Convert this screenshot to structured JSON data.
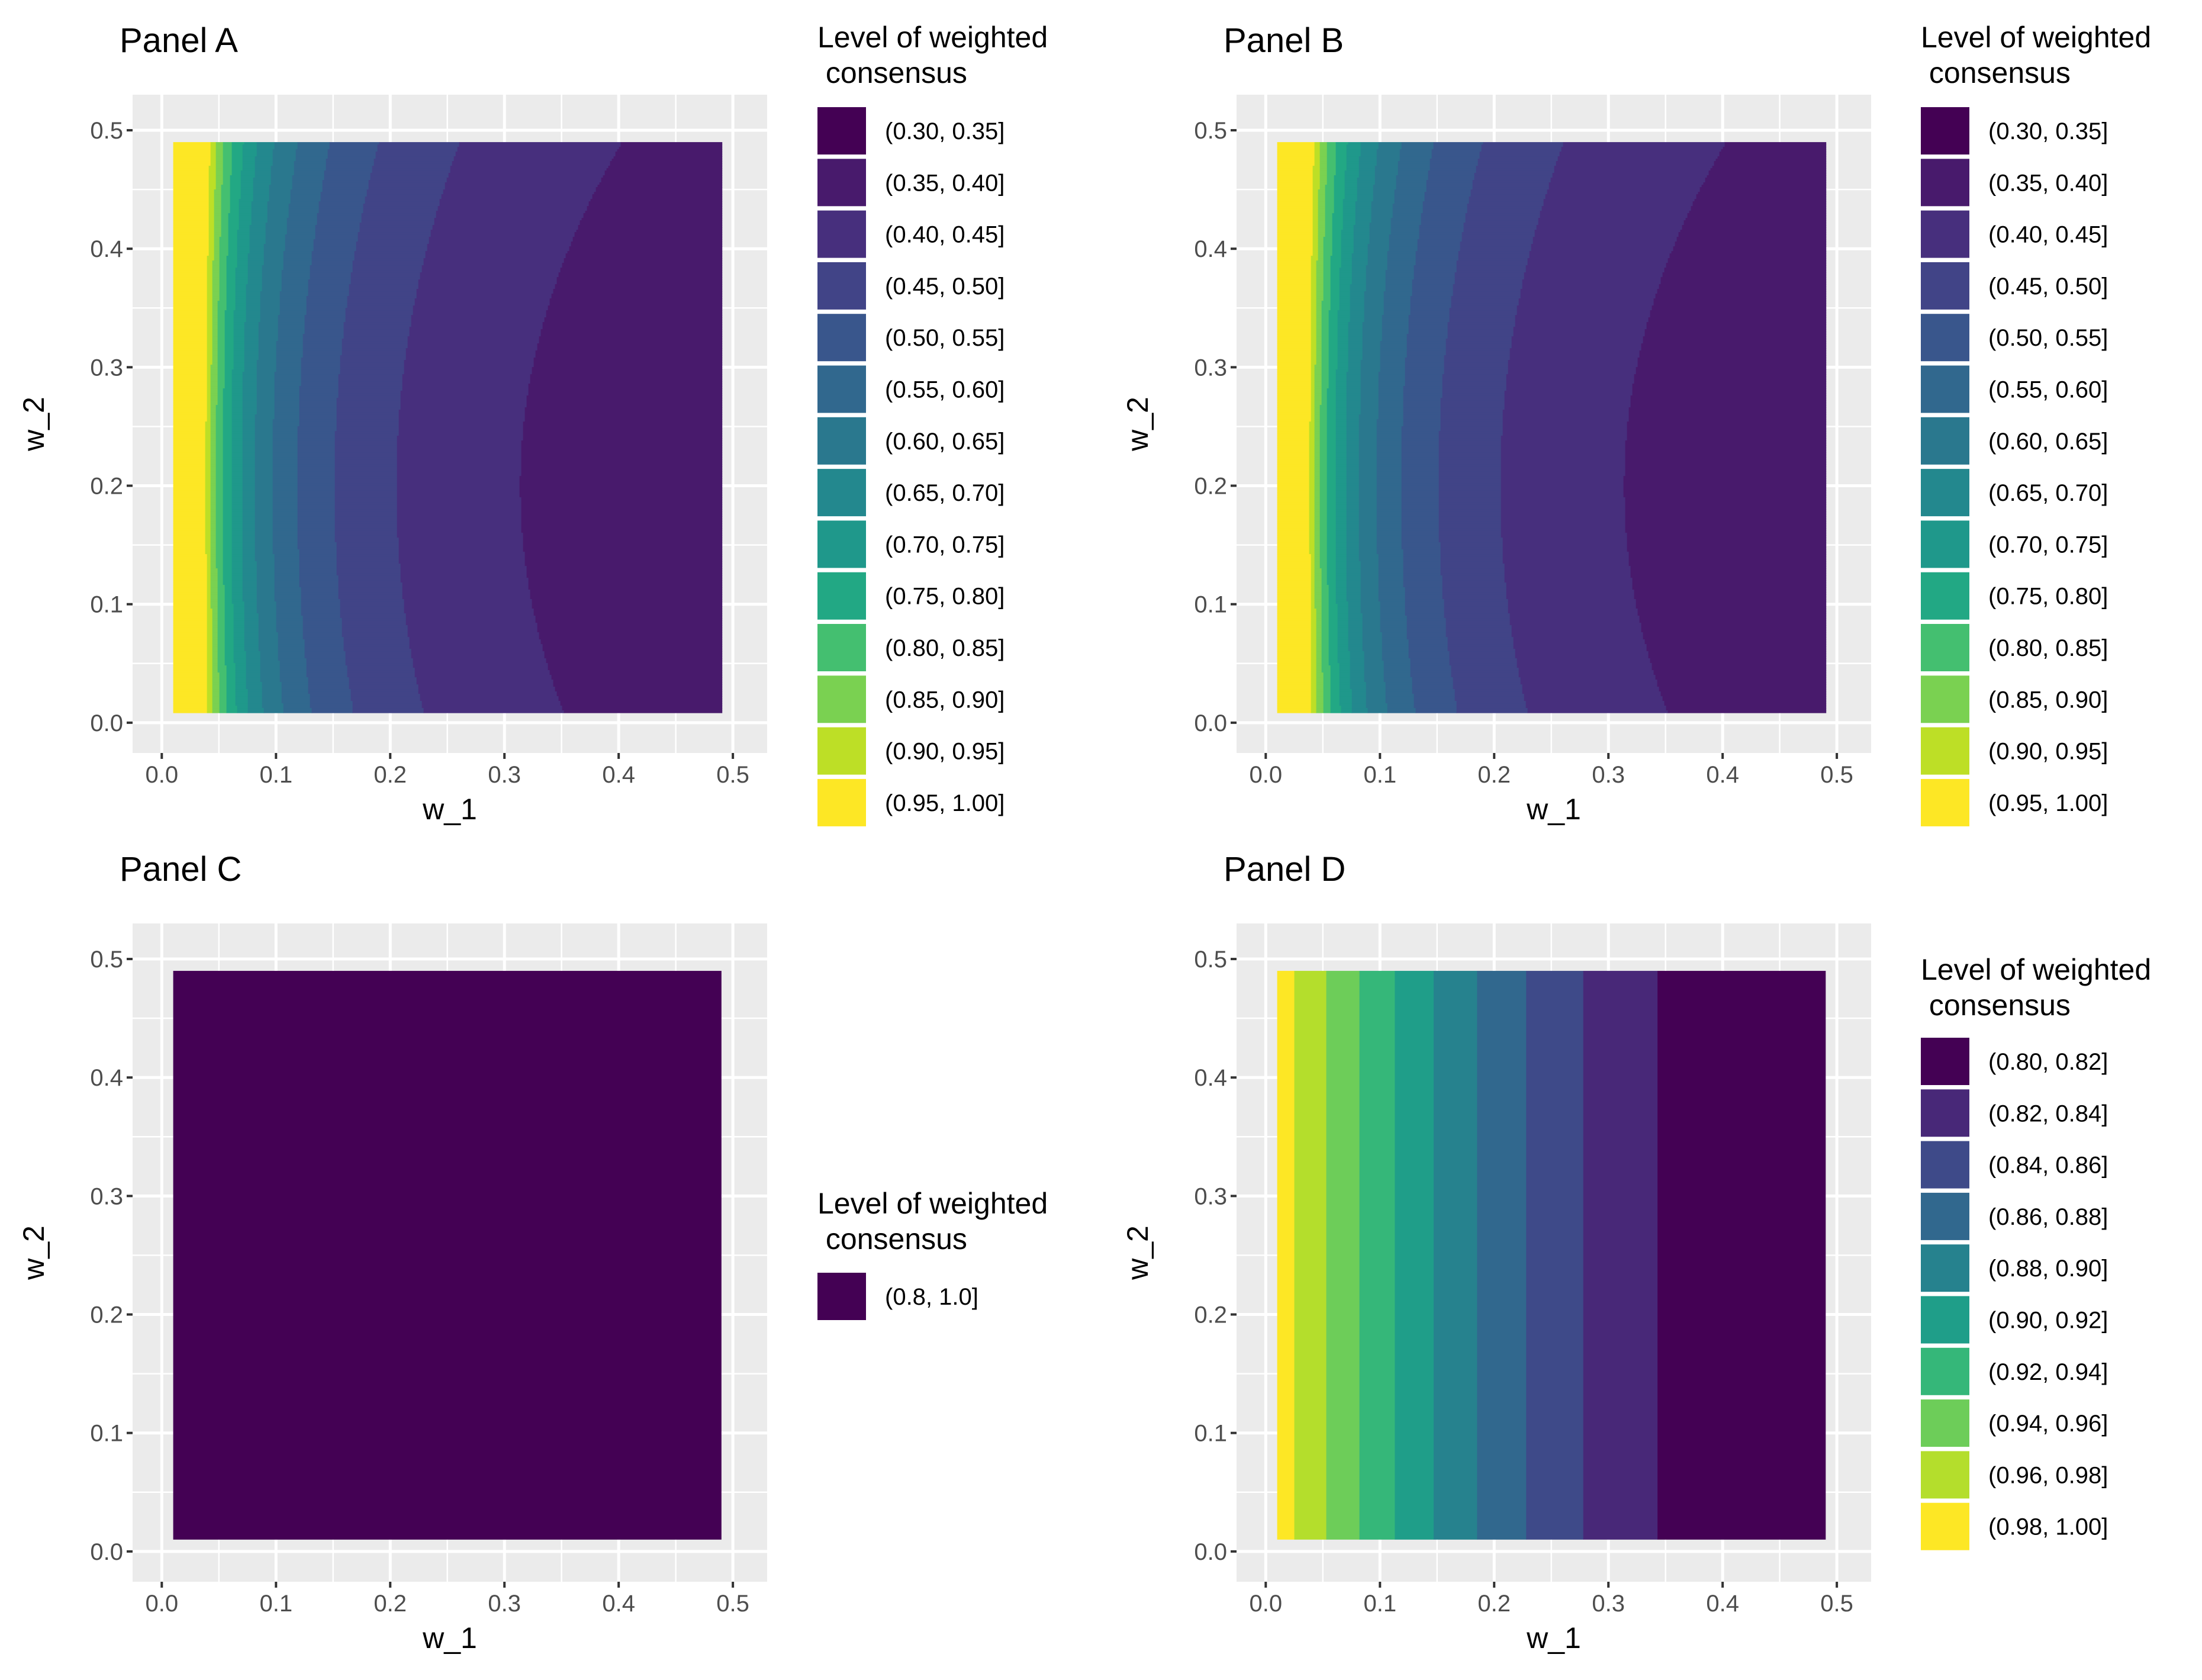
{
  "chart_data": [
    {
      "type": "contour",
      "panel": "A",
      "title": "Panel A",
      "xlabel": "w_1",
      "ylabel": "w_2",
      "xlim": [
        0,
        0.5
      ],
      "ylim": [
        0,
        0.5
      ],
      "data_extent": {
        "x": [
          0.01,
          0.49
        ],
        "y": [
          0.01,
          0.49
        ]
      },
      "x_ticks": [
        "0.0",
        "0.1",
        "0.2",
        "0.3",
        "0.4",
        "0.5"
      ],
      "y_ticks": [
        "0.0",
        "0.1",
        "0.2",
        "0.3",
        "0.4",
        "0.5"
      ],
      "model": "ab",
      "legend": {
        "title_line1": "Level of weighted",
        "title_line2": " consensus",
        "position": "right-top",
        "items": [
          {
            "label": "(0.30, 0.35]",
            "color": "#440154"
          },
          {
            "label": "(0.35, 0.40]",
            "color": "#481a6c"
          },
          {
            "label": "(0.40, 0.45]",
            "color": "#472f7d"
          },
          {
            "label": "(0.45, 0.50]",
            "color": "#414487"
          },
          {
            "label": "(0.50, 0.55]",
            "color": "#39568c"
          },
          {
            "label": "(0.55, 0.60]",
            "color": "#31688e"
          },
          {
            "label": "(0.60, 0.65]",
            "color": "#2a788e"
          },
          {
            "label": "(0.65, 0.70]",
            "color": "#23888e"
          },
          {
            "label": "(0.70, 0.75]",
            "color": "#1f988b"
          },
          {
            "label": "(0.75, 0.80]",
            "color": "#22a884"
          },
          {
            "label": "(0.80, 0.85]",
            "color": "#44bf70"
          },
          {
            "label": "(0.85, 0.90]",
            "color": "#7ad151"
          },
          {
            "label": "(0.90, 0.95]",
            "color": "#bddf26"
          },
          {
            "label": "(0.95, 1.00]",
            "color": "#fde725"
          }
        ]
      }
    },
    {
      "type": "contour",
      "panel": "B",
      "title": "Panel B",
      "xlabel": "w_1",
      "ylabel": "w_2",
      "xlim": [
        0,
        0.5
      ],
      "ylim": [
        0,
        0.5
      ],
      "data_extent": {
        "x": [
          0.01,
          0.49
        ],
        "y": [
          0.01,
          0.49
        ]
      },
      "x_ticks": [
        "0.0",
        "0.1",
        "0.2",
        "0.3",
        "0.4",
        "0.5"
      ],
      "y_ticks": [
        "0.0",
        "0.1",
        "0.2",
        "0.3",
        "0.4",
        "0.5"
      ],
      "model": "ab",
      "legend": {
        "title_line1": "Level of weighted",
        "title_line2": " consensus",
        "position": "right-top",
        "items": [
          {
            "label": "(0.30, 0.35]",
            "color": "#440154"
          },
          {
            "label": "(0.35, 0.40]",
            "color": "#481a6c"
          },
          {
            "label": "(0.40, 0.45]",
            "color": "#472f7d"
          },
          {
            "label": "(0.45, 0.50]",
            "color": "#414487"
          },
          {
            "label": "(0.50, 0.55]",
            "color": "#39568c"
          },
          {
            "label": "(0.55, 0.60]",
            "color": "#31688e"
          },
          {
            "label": "(0.60, 0.65]",
            "color": "#2a788e"
          },
          {
            "label": "(0.65, 0.70]",
            "color": "#23888e"
          },
          {
            "label": "(0.70, 0.75]",
            "color": "#1f988b"
          },
          {
            "label": "(0.75, 0.80]",
            "color": "#22a884"
          },
          {
            "label": "(0.80, 0.85]",
            "color": "#44bf70"
          },
          {
            "label": "(0.85, 0.90]",
            "color": "#7ad151"
          },
          {
            "label": "(0.90, 0.95]",
            "color": "#bddf26"
          },
          {
            "label": "(0.95, 1.00]",
            "color": "#fde725"
          }
        ]
      }
    },
    {
      "type": "contour",
      "panel": "C",
      "title": "Panel C",
      "xlabel": "w_1",
      "ylabel": "w_2",
      "xlim": [
        0,
        0.5
      ],
      "ylim": [
        0,
        0.5
      ],
      "data_extent": {
        "x": [
          0.01,
          0.49
        ],
        "y": [
          0.01,
          0.49
        ]
      },
      "x_ticks": [
        "0.0",
        "0.1",
        "0.2",
        "0.3",
        "0.4",
        "0.5"
      ],
      "y_ticks": [
        "0.0",
        "0.1",
        "0.2",
        "0.3",
        "0.4",
        "0.5"
      ],
      "model": "constant",
      "legend": {
        "title_line1": "Level of weighted",
        "title_line2": " consensus",
        "position": "right-middle",
        "items": [
          {
            "label": "(0.8, 1.0]",
            "color": "#440154"
          }
        ]
      }
    },
    {
      "type": "contour",
      "panel": "D",
      "title": "Panel D",
      "xlabel": "w_1",
      "ylabel": "w_2",
      "xlim": [
        0,
        0.5
      ],
      "ylim": [
        0,
        0.5
      ],
      "data_extent": {
        "x": [
          0.01,
          0.49
        ],
        "y": [
          0.01,
          0.49
        ]
      },
      "x_ticks": [
        "0.0",
        "0.1",
        "0.2",
        "0.3",
        "0.4",
        "0.5"
      ],
      "y_ticks": [
        "0.0",
        "0.1",
        "0.2",
        "0.3",
        "0.4",
        "0.5"
      ],
      "model": "vertical",
      "band_edges_w1": [
        0.01,
        0.025,
        0.053,
        0.082,
        0.113,
        0.147,
        0.185,
        0.228,
        0.278,
        0.343,
        0.49
      ],
      "legend": {
        "title_line1": "Level of weighted",
        "title_line2": " consensus",
        "position": "right-middle",
        "items": [
          {
            "label": "(0.80, 0.82]",
            "color": "#440154"
          },
          {
            "label": "(0.82, 0.84]",
            "color": "#482878"
          },
          {
            "label": "(0.84, 0.86]",
            "color": "#3e4a89"
          },
          {
            "label": "(0.86, 0.88]",
            "color": "#31688e"
          },
          {
            "label": "(0.88, 0.90]",
            "color": "#26828e"
          },
          {
            "label": "(0.90, 0.92]",
            "color": "#1f9e89"
          },
          {
            "label": "(0.92, 0.94]",
            "color": "#35b779"
          },
          {
            "label": "(0.94, 0.96]",
            "color": "#6dcd59"
          },
          {
            "label": "(0.96, 0.98]",
            "color": "#b4de2c"
          },
          {
            "label": "(0.98, 1.00]",
            "color": "#fde725"
          }
        ]
      }
    }
  ]
}
